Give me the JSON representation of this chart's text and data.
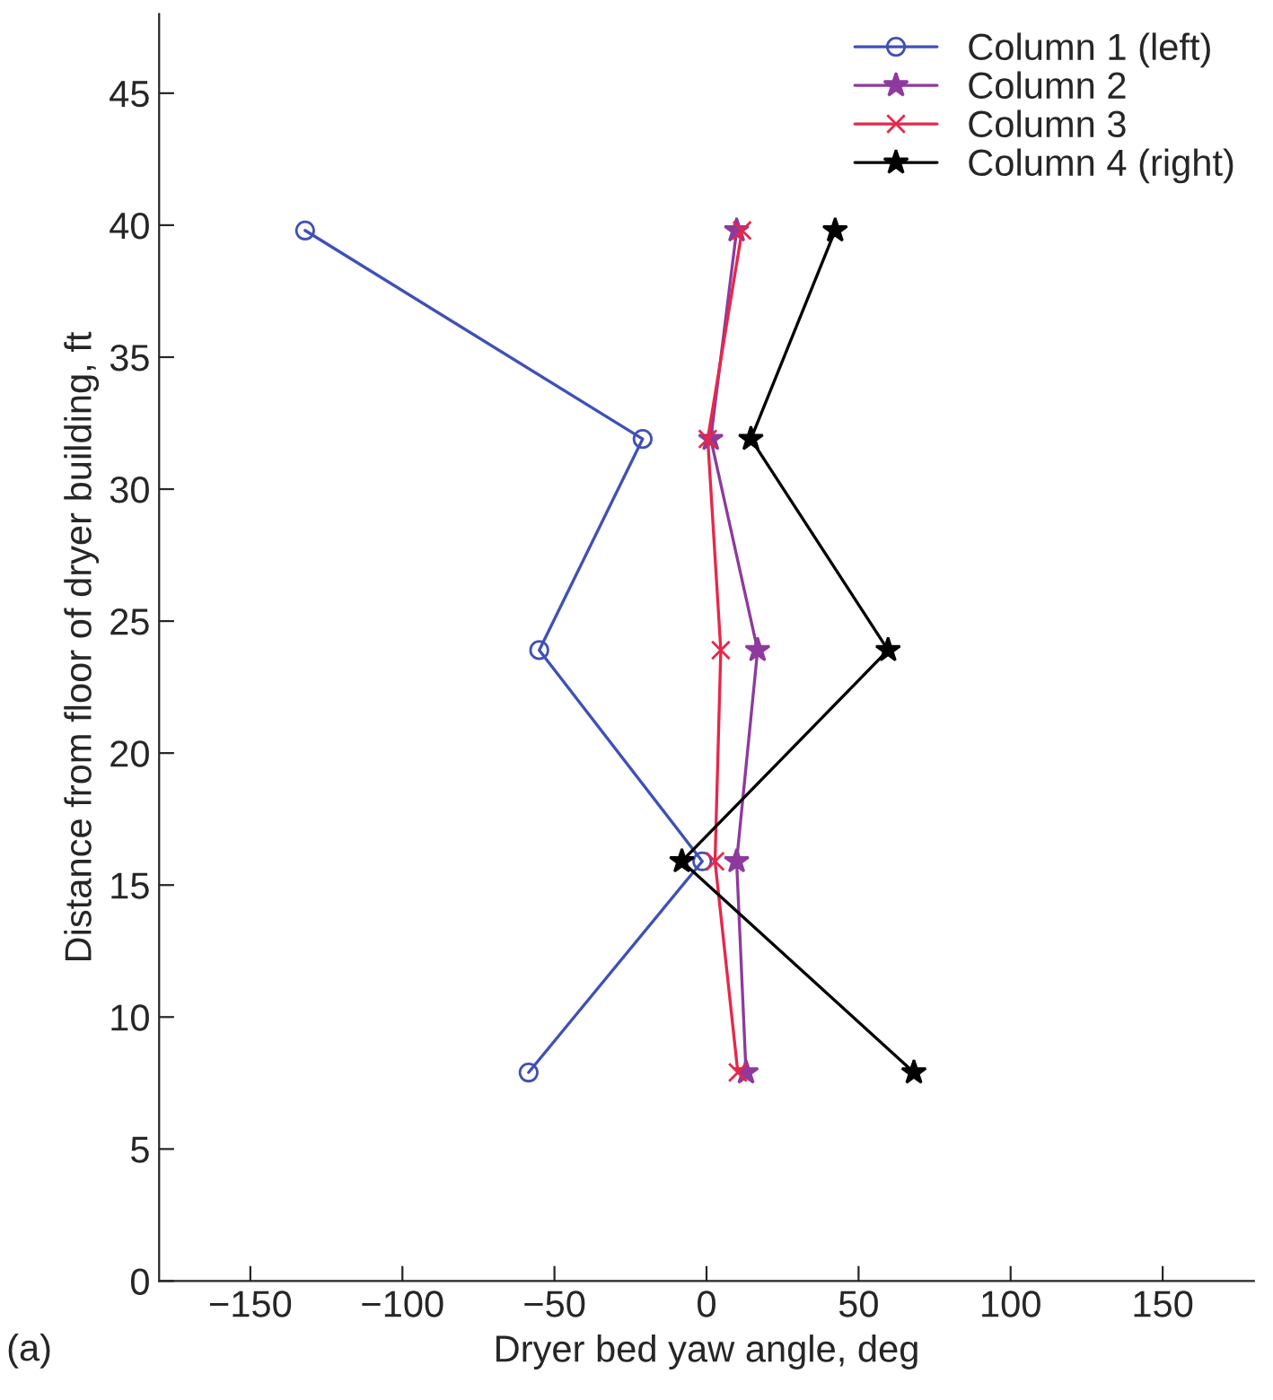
{
  "chart_data": {
    "type": "line",
    "xlabel": "Dryer bed yaw angle, deg",
    "ylabel": "Distance from floor of dryer building, ft",
    "annotations": [
      "(a)"
    ],
    "xlim": [
      -180,
      180
    ],
    "xticks": [
      {
        "value": -150,
        "label": "−150"
      },
      {
        "value": -100,
        "label": "−100"
      },
      {
        "value": -50,
        "label": "−50"
      },
      0,
      50,
      100,
      150
    ],
    "ylim": [
      0,
      48
    ],
    "yticks": [
      0,
      5,
      10,
      15,
      20,
      25,
      30,
      35,
      40,
      45
    ],
    "grid": false,
    "legend": "top right",
    "line_style": "solid",
    "series": [
      {
        "name": "Column 1 (left)",
        "color": "#3f51b5",
        "marker": "circle",
        "x": [
          -132,
          -21,
          -55,
          -1.4,
          -58.5
        ],
        "values": [
          39.8,
          31.9,
          23.9,
          15.9,
          7.9
        ]
      },
      {
        "name": "Column 2",
        "color": "#8e3a9d",
        "marker": "star",
        "x": [
          9.9,
          1.4,
          16.8,
          9.9,
          13
        ],
        "values": [
          39.8,
          31.9,
          23.9,
          15.9,
          7.9
        ]
      },
      {
        "name": "Column 3",
        "color": "#e8264a",
        "marker": "cross",
        "x": [
          11.7,
          0.4,
          4.7,
          2.8,
          10.3
        ],
        "values": [
          39.8,
          31.9,
          23.9,
          15.9,
          7.9
        ]
      },
      {
        "name": "Column 4 (right)",
        "color": "#000000",
        "marker": "star",
        "x": [
          42.3,
          14.6,
          59.7,
          -8.1,
          68.2
        ],
        "values": [
          39.8,
          31.9,
          23.9,
          15.9,
          7.9
        ]
      }
    ]
  }
}
